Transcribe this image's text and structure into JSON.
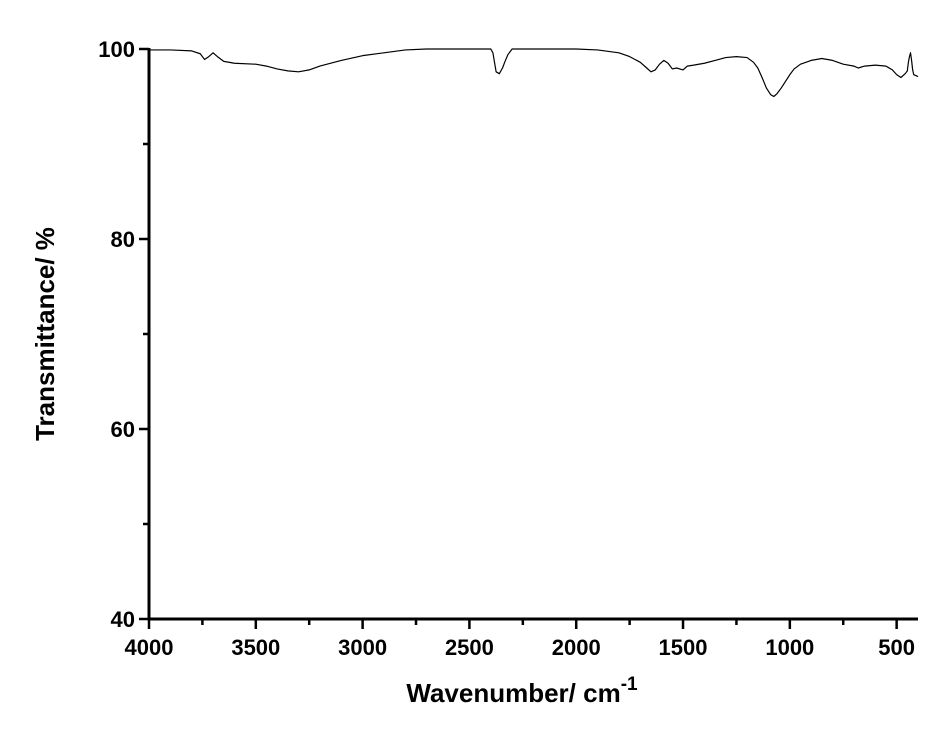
{
  "chart_data": {
    "type": "line",
    "xlabel": "Wavenumber/ cm",
    "xlabel_superscript": "-1",
    "ylabel": "Transmittance/ %",
    "xlim": [
      4000,
      400
    ],
    "ylim": [
      40,
      100
    ],
    "x_reversed": true,
    "x_ticks": [
      4000,
      3500,
      3000,
      2500,
      2000,
      1500,
      1000,
      500
    ],
    "x_minor_ticks": [
      3750,
      3250,
      2750,
      2250,
      1750,
      1250,
      750
    ],
    "y_ticks": [
      40,
      60,
      80,
      100
    ],
    "y_minor_ticks": [
      50,
      70,
      90
    ],
    "x_tick_labels": [
      "4000",
      "3500",
      "3000",
      "2500",
      "2000",
      "1500",
      "1000",
      "500"
    ],
    "y_tick_labels": [
      "40",
      "60",
      "80",
      "100"
    ],
    "grid": false,
    "series": [
      {
        "color": "#000000",
        "points": [
          [
            4000,
            99.9
          ],
          [
            3900,
            99.9
          ],
          [
            3800,
            99.8
          ],
          [
            3760,
            99.5
          ],
          [
            3740,
            98.9
          ],
          [
            3720,
            99.2
          ],
          [
            3700,
            99.6
          ],
          [
            3680,
            99.2
          ],
          [
            3650,
            98.7
          ],
          [
            3600,
            98.5
          ],
          [
            3500,
            98.4
          ],
          [
            3450,
            98.2
          ],
          [
            3400,
            97.9
          ],
          [
            3350,
            97.7
          ],
          [
            3300,
            97.6
          ],
          [
            3250,
            97.8
          ],
          [
            3200,
            98.2
          ],
          [
            3100,
            98.8
          ],
          [
            3000,
            99.3
          ],
          [
            2900,
            99.6
          ],
          [
            2800,
            99.9
          ],
          [
            2700,
            100.0
          ],
          [
            2600,
            100.0
          ],
          [
            2500,
            100.0
          ],
          [
            2400,
            100.0
          ],
          [
            2390,
            99.6
          ],
          [
            2375,
            97.6
          ],
          [
            2360,
            97.4
          ],
          [
            2345,
            98.0
          ],
          [
            2335,
            98.6
          ],
          [
            2320,
            99.4
          ],
          [
            2300,
            100.0
          ],
          [
            2200,
            100.0
          ],
          [
            2100,
            100.0
          ],
          [
            2000,
            100.0
          ],
          [
            1900,
            99.9
          ],
          [
            1800,
            99.6
          ],
          [
            1750,
            99.2
          ],
          [
            1700,
            98.6
          ],
          [
            1670,
            98.0
          ],
          [
            1650,
            97.6
          ],
          [
            1630,
            97.8
          ],
          [
            1610,
            98.4
          ],
          [
            1590,
            98.8
          ],
          [
            1570,
            98.5
          ],
          [
            1550,
            97.9
          ],
          [
            1530,
            98.0
          ],
          [
            1500,
            97.8
          ],
          [
            1480,
            98.2
          ],
          [
            1450,
            98.3
          ],
          [
            1400,
            98.5
          ],
          [
            1350,
            98.8
          ],
          [
            1300,
            99.1
          ],
          [
            1250,
            99.2
          ],
          [
            1200,
            99.1
          ],
          [
            1170,
            98.6
          ],
          [
            1150,
            98.0
          ],
          [
            1130,
            97.0
          ],
          [
            1110,
            95.9
          ],
          [
            1090,
            95.2
          ],
          [
            1075,
            95.0
          ],
          [
            1060,
            95.3
          ],
          [
            1040,
            95.9
          ],
          [
            1020,
            96.6
          ],
          [
            1000,
            97.3
          ],
          [
            980,
            97.9
          ],
          [
            950,
            98.4
          ],
          [
            900,
            98.8
          ],
          [
            850,
            99.0
          ],
          [
            800,
            98.8
          ],
          [
            750,
            98.4
          ],
          [
            700,
            98.2
          ],
          [
            680,
            98.0
          ],
          [
            650,
            98.2
          ],
          [
            600,
            98.3
          ],
          [
            550,
            98.2
          ],
          [
            520,
            97.8
          ],
          [
            500,
            97.3
          ],
          [
            480,
            97.0
          ],
          [
            460,
            97.4
          ],
          [
            450,
            97.7
          ],
          [
            445,
            98.6
          ],
          [
            440,
            99.2
          ],
          [
            435,
            99.6
          ],
          [
            430,
            98.8
          ],
          [
            425,
            97.8
          ],
          [
            420,
            97.3
          ],
          [
            410,
            97.2
          ],
          [
            400,
            97.1
          ]
        ]
      }
    ]
  }
}
